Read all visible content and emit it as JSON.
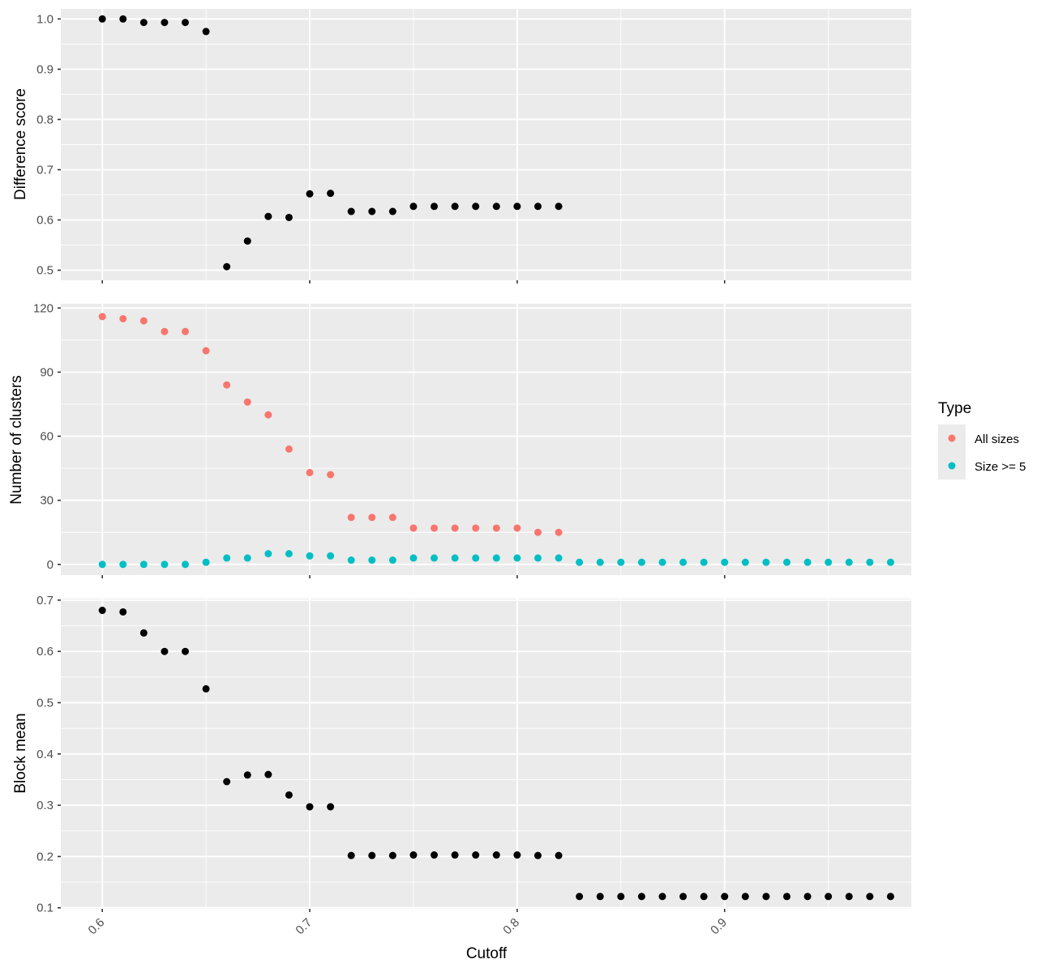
{
  "chart_data": [
    {
      "type": "scatter",
      "panel": "top",
      "ylabel": "Difference score",
      "ylim": [
        0.48,
        1.02
      ],
      "yticks": [
        0.5,
        0.6,
        0.7,
        0.8,
        0.9,
        1.0
      ],
      "ytick_labels": [
        "0.5",
        "0.6",
        "0.7",
        "0.8",
        "0.9",
        "1.0"
      ],
      "xlim": [
        0.58,
        0.9
      ]
    },
    {
      "type": "scatter",
      "panel": "middle",
      "ylabel": "Number of clusters",
      "ylim": [
        -5,
        122
      ],
      "yticks": [
        0,
        30,
        60,
        90,
        120
      ],
      "ytick_labels": [
        "0",
        "30",
        "60",
        "90",
        "120"
      ]
    },
    {
      "type": "scatter",
      "panel": "bottom",
      "ylabel": "Block mean",
      "xlabel": "Cutoff",
      "ylim": [
        0.098,
        0.703
      ],
      "yticks": [
        0.1,
        0.2,
        0.3,
        0.4,
        0.5,
        0.6,
        0.7
      ],
      "ytick_labels": [
        "0.1",
        "0.2",
        "0.3",
        "0.4",
        "0.5",
        "0.6",
        "0.7"
      ]
    }
  ],
  "shared_x": {
    "xlim": [
      0.58,
      0.99
    ],
    "xticks": [
      0.6,
      0.7,
      0.8,
      0.9
    ],
    "xtick_labels": [
      "0.6",
      "0.7",
      "0.8",
      "0.9"
    ],
    "xlabel": "Cutoff"
  },
  "series_data": {
    "difference_score": {
      "x": [
        0.6,
        0.61,
        0.62,
        0.63,
        0.64,
        0.65,
        0.66,
        0.67,
        0.68,
        0.69,
        0.7,
        0.71,
        0.72,
        0.73,
        0.74,
        0.75,
        0.76,
        0.77,
        0.78,
        0.79,
        0.8,
        0.81,
        0.82
      ],
      "y": [
        1.0,
        1.0,
        0.993,
        0.993,
        0.993,
        0.975,
        0.507,
        0.558,
        0.607,
        0.605,
        0.652,
        0.653,
        0.617,
        0.617,
        0.617,
        0.627,
        0.627,
        0.627,
        0.627,
        0.627,
        0.627,
        0.627,
        0.627
      ],
      "color": "#000000"
    },
    "clusters_all_sizes": {
      "name": "All sizes",
      "x": [
        0.6,
        0.61,
        0.62,
        0.63,
        0.64,
        0.65,
        0.66,
        0.67,
        0.68,
        0.69,
        0.7,
        0.71,
        0.72,
        0.73,
        0.74,
        0.75,
        0.76,
        0.77,
        0.78,
        0.79,
        0.8,
        0.81,
        0.82
      ],
      "y": [
        116,
        115,
        114,
        109,
        109,
        100,
        84,
        76,
        70,
        54,
        43,
        42,
        22,
        22,
        22,
        17,
        17,
        17,
        17,
        17,
        17,
        15,
        15
      ],
      "color": "#F8766D"
    },
    "clusters_size_ge5": {
      "name": "Size >= 5",
      "x": [
        0.6,
        0.61,
        0.62,
        0.63,
        0.64,
        0.65,
        0.66,
        0.67,
        0.68,
        0.69,
        0.7,
        0.71,
        0.72,
        0.73,
        0.74,
        0.75,
        0.76,
        0.77,
        0.78,
        0.79,
        0.8,
        0.81,
        0.82,
        0.83,
        0.84,
        0.85,
        0.86,
        0.87,
        0.88,
        0.89,
        0.9,
        0.91,
        0.92,
        0.93,
        0.94,
        0.95,
        0.96,
        0.97,
        0.98
      ],
      "y": [
        0,
        0,
        0,
        0,
        0,
        1,
        3,
        3,
        5,
        5,
        4,
        4,
        2,
        2,
        2,
        3,
        3,
        3,
        3,
        3,
        3,
        3,
        3,
        1,
        1,
        1,
        1,
        1,
        1,
        1,
        1,
        1,
        1,
        1,
        1,
        1,
        1,
        1,
        1
      ],
      "color": "#00BFC4"
    },
    "block_mean": {
      "x": [
        0.6,
        0.61,
        0.62,
        0.63,
        0.64,
        0.65,
        0.66,
        0.67,
        0.68,
        0.69,
        0.7,
        0.71,
        0.72,
        0.73,
        0.74,
        0.75,
        0.76,
        0.77,
        0.78,
        0.79,
        0.8,
        0.81,
        0.82,
        0.83,
        0.84,
        0.85,
        0.86,
        0.87,
        0.88,
        0.89,
        0.9,
        0.91,
        0.92,
        0.93,
        0.94,
        0.95,
        0.96,
        0.97,
        0.98
      ],
      "y": [
        0.68,
        0.677,
        0.636,
        0.6,
        0.6,
        0.527,
        0.346,
        0.359,
        0.36,
        0.32,
        0.297,
        0.297,
        0.202,
        0.202,
        0.202,
        0.203,
        0.203,
        0.203,
        0.203,
        0.203,
        0.203,
        0.202,
        0.202,
        0.122,
        0.122,
        0.122,
        0.122,
        0.122,
        0.122,
        0.122,
        0.122,
        0.122,
        0.122,
        0.122,
        0.122,
        0.122,
        0.122,
        0.122,
        0.122
      ],
      "color": "#000000"
    }
  },
  "legend": {
    "title": "Type",
    "placement": "right",
    "items": [
      {
        "label": "All sizes",
        "color": "#F8766D"
      },
      {
        "label": "Size >= 5",
        "color": "#00BFC4"
      }
    ]
  },
  "style": {
    "panel_background": "#EBEBEB",
    "grid_color": "#FFFFFF",
    "tick_color": "#333333"
  }
}
